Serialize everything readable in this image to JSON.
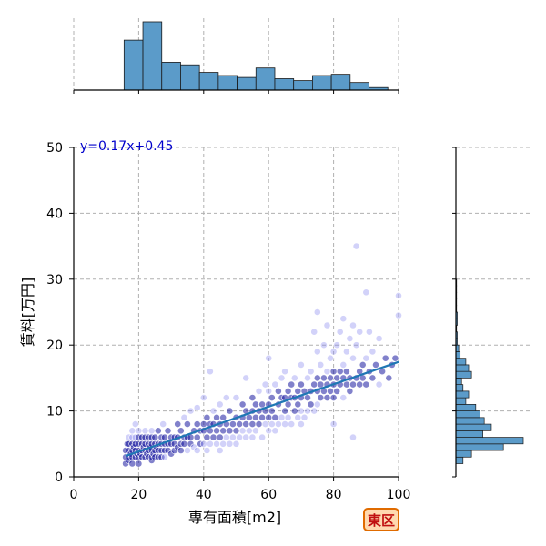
{
  "colors": {
    "scatter_fill": "#8a8af0",
    "scatter_dark": "#1a1aa0",
    "regression_line": "#1f77b4",
    "hist_fill": "#5b9bc9",
    "hist_edge": "#1a1a1a",
    "grid": "#b0b0b0",
    "equation": "#0000cc",
    "badge_border": "#e06b00",
    "badge_fill": "#ffd9b0",
    "badge_text": "#c01010"
  },
  "badge_text": "東区",
  "chart_data": {
    "type": "scatter",
    "title": "",
    "xlabel": "専有面積[m2]",
    "ylabel": "賃料[万円]",
    "xlim": [
      0,
      100
    ],
    "ylim": [
      0,
      50
    ],
    "xticks": [
      0,
      20,
      40,
      60,
      80,
      100
    ],
    "yticks": [
      0,
      10,
      20,
      30,
      40,
      50
    ],
    "grid": true,
    "regression": {
      "equation": "y=0.17x+0.45",
      "slope": 0.17,
      "intercept": 0.45,
      "x_range": [
        16,
        100
      ]
    },
    "points": [
      [
        16,
        2
      ],
      [
        16,
        3
      ],
      [
        16,
        4
      ],
      [
        16.5,
        5
      ],
      [
        17,
        2.5
      ],
      [
        17,
        3
      ],
      [
        17,
        4
      ],
      [
        17,
        5
      ],
      [
        17,
        6
      ],
      [
        17.5,
        3.5
      ],
      [
        18,
        2
      ],
      [
        18,
        3
      ],
      [
        18,
        4
      ],
      [
        18,
        5
      ],
      [
        18,
        6
      ],
      [
        18,
        7
      ],
      [
        18.5,
        4.5
      ],
      [
        19,
        3
      ],
      [
        19,
        4
      ],
      [
        19,
        5
      ],
      [
        19,
        6
      ],
      [
        19,
        8
      ],
      [
        19.5,
        3.5
      ],
      [
        20,
        2
      ],
      [
        20,
        3
      ],
      [
        20,
        4
      ],
      [
        20,
        5
      ],
      [
        20,
        6
      ],
      [
        20,
        7
      ],
      [
        20.5,
        3.5
      ],
      [
        21,
        3
      ],
      [
        21,
        4
      ],
      [
        21,
        5
      ],
      [
        21,
        6
      ],
      [
        21.5,
        4.5
      ],
      [
        22,
        3
      ],
      [
        22,
        4
      ],
      [
        22,
        5
      ],
      [
        22,
        6
      ],
      [
        22,
        7
      ],
      [
        22.5,
        3.5
      ],
      [
        23,
        3
      ],
      [
        23,
        4
      ],
      [
        23,
        5
      ],
      [
        23,
        6
      ],
      [
        23.5,
        4.5
      ],
      [
        24,
        2.5
      ],
      [
        24,
        3
      ],
      [
        24,
        4
      ],
      [
        24,
        5
      ],
      [
        24,
        6
      ],
      [
        24,
        7
      ],
      [
        24.5,
        3.5
      ],
      [
        25,
        3
      ],
      [
        25,
        4
      ],
      [
        25,
        5
      ],
      [
        25,
        6
      ],
      [
        25.5,
        4.5
      ],
      [
        26,
        3
      ],
      [
        26,
        4
      ],
      [
        26,
        5
      ],
      [
        26,
        7
      ],
      [
        27,
        3
      ],
      [
        27,
        4
      ],
      [
        27,
        5
      ],
      [
        27,
        6
      ],
      [
        27.5,
        8
      ],
      [
        28,
        3
      ],
      [
        28,
        4
      ],
      [
        28,
        5
      ],
      [
        28,
        6
      ],
      [
        29,
        4
      ],
      [
        29,
        5
      ],
      [
        29,
        7
      ],
      [
        30,
        3.5
      ],
      [
        30,
        5
      ],
      [
        30,
        6
      ],
      [
        31,
        4
      ],
      [
        31,
        5
      ],
      [
        31,
        6
      ],
      [
        32,
        4.5
      ],
      [
        32,
        6
      ],
      [
        32,
        8
      ],
      [
        33,
        4
      ],
      [
        33,
        5
      ],
      [
        33,
        7
      ],
      [
        34,
        5
      ],
      [
        34,
        6
      ],
      [
        34,
        9
      ],
      [
        35,
        4
      ],
      [
        35,
        6
      ],
      [
        35,
        8
      ],
      [
        36,
        5
      ],
      [
        36,
        6
      ],
      [
        36,
        10
      ],
      [
        37,
        4.5
      ],
      [
        37,
        7
      ],
      [
        38,
        4
      ],
      [
        38,
        6
      ],
      [
        38,
        8
      ],
      [
        38,
        10.5
      ],
      [
        39,
        5
      ],
      [
        39,
        7
      ],
      [
        40,
        5
      ],
      [
        40,
        7
      ],
      [
        40,
        8
      ],
      [
        40,
        12
      ],
      [
        41,
        4
      ],
      [
        41,
        6
      ],
      [
        41,
        9
      ],
      [
        42,
        5
      ],
      [
        42,
        7
      ],
      [
        42,
        8
      ],
      [
        42,
        16
      ],
      [
        43,
        6
      ],
      [
        43,
        8
      ],
      [
        43,
        10
      ],
      [
        44,
        5
      ],
      [
        44,
        7
      ],
      [
        44,
        9
      ],
      [
        45,
        4
      ],
      [
        45,
        6
      ],
      [
        45,
        8
      ],
      [
        45,
        11
      ],
      [
        46,
        5
      ],
      [
        46,
        7
      ],
      [
        46,
        9
      ],
      [
        47,
        6
      ],
      [
        47,
        8
      ],
      [
        47,
        12
      ],
      [
        48,
        5
      ],
      [
        48,
        7
      ],
      [
        48,
        10
      ],
      [
        49,
        6
      ],
      [
        49,
        8
      ],
      [
        50,
        5
      ],
      [
        50,
        7
      ],
      [
        50,
        9
      ],
      [
        50,
        12
      ],
      [
        51,
        6
      ],
      [
        51,
        8
      ],
      [
        52,
        7
      ],
      [
        52,
        9
      ],
      [
        52,
        11
      ],
      [
        53,
        6
      ],
      [
        53,
        8
      ],
      [
        53,
        10
      ],
      [
        53,
        15
      ],
      [
        54,
        7
      ],
      [
        54,
        9
      ],
      [
        55,
        6
      ],
      [
        55,
        8
      ],
      [
        55,
        10
      ],
      [
        55,
        12
      ],
      [
        56,
        7
      ],
      [
        56,
        9
      ],
      [
        56,
        11
      ],
      [
        57,
        8
      ],
      [
        57,
        10
      ],
      [
        57,
        13
      ],
      [
        58,
        6
      ],
      [
        58,
        9
      ],
      [
        58,
        11
      ],
      [
        59,
        8
      ],
      [
        59,
        10
      ],
      [
        59,
        14
      ],
      [
        60,
        7
      ],
      [
        60,
        9
      ],
      [
        60,
        11
      ],
      [
        60,
        13
      ],
      [
        60,
        18
      ],
      [
        61,
        8
      ],
      [
        61,
        10
      ],
      [
        61,
        12
      ],
      [
        62,
        7
      ],
      [
        62,
        9
      ],
      [
        62,
        14
      ],
      [
        63,
        8
      ],
      [
        63,
        11
      ],
      [
        63,
        13
      ],
      [
        64,
        9
      ],
      [
        64,
        12
      ],
      [
        64,
        15
      ],
      [
        65,
        8
      ],
      [
        65,
        10
      ],
      [
        65,
        12
      ],
      [
        65,
        16
      ],
      [
        66,
        9
      ],
      [
        66,
        11
      ],
      [
        66,
        13
      ],
      [
        67,
        8
      ],
      [
        67,
        12
      ],
      [
        67,
        14
      ],
      [
        68,
        10
      ],
      [
        68,
        12
      ],
      [
        68,
        15
      ],
      [
        69,
        9
      ],
      [
        69,
        11
      ],
      [
        69,
        13
      ],
      [
        70,
        8
      ],
      [
        70,
        10
      ],
      [
        70,
        12
      ],
      [
        70,
        14
      ],
      [
        70,
        17
      ],
      [
        71,
        9
      ],
      [
        71,
        13
      ],
      [
        72,
        10
      ],
      [
        72,
        12
      ],
      [
        72,
        15
      ],
      [
        73,
        11
      ],
      [
        73,
        13
      ],
      [
        73,
        16
      ],
      [
        74,
        10
      ],
      [
        74,
        14
      ],
      [
        74,
        22
      ],
      [
        75,
        11
      ],
      [
        75,
        13
      ],
      [
        75,
        15
      ],
      [
        75,
        19
      ],
      [
        75,
        25
      ],
      [
        76,
        12
      ],
      [
        76,
        14
      ],
      [
        76,
        17
      ],
      [
        77,
        13
      ],
      [
        77,
        15
      ],
      [
        77,
        20
      ],
      [
        78,
        12
      ],
      [
        78,
        14
      ],
      [
        78,
        16
      ],
      [
        78,
        23
      ],
      [
        79,
        13
      ],
      [
        79,
        15
      ],
      [
        79,
        18
      ],
      [
        80,
        8
      ],
      [
        80,
        12
      ],
      [
        80,
        14
      ],
      [
        80,
        16
      ],
      [
        80,
        19
      ],
      [
        81,
        13
      ],
      [
        81,
        15
      ],
      [
        81,
        20
      ],
      [
        82,
        14
      ],
      [
        82,
        16
      ],
      [
        82,
        22
      ],
      [
        83,
        12
      ],
      [
        83,
        15
      ],
      [
        83,
        17
      ],
      [
        83,
        24
      ],
      [
        84,
        14
      ],
      [
        84,
        16
      ],
      [
        84,
        19
      ],
      [
        85,
        13
      ],
      [
        85,
        15
      ],
      [
        85,
        21
      ],
      [
        86,
        6
      ],
      [
        86,
        14
      ],
      [
        86,
        18
      ],
      [
        86,
        23
      ],
      [
        87,
        35
      ],
      [
        87,
        15
      ],
      [
        87,
        20
      ],
      [
        88,
        14
      ],
      [
        88,
        16
      ],
      [
        88,
        22
      ],
      [
        89,
        15
      ],
      [
        89,
        17
      ],
      [
        90,
        14
      ],
      [
        90,
        18
      ],
      [
        90,
        28
      ],
      [
        91,
        16
      ],
      [
        91,
        22
      ],
      [
        92,
        15
      ],
      [
        92,
        19
      ],
      [
        93,
        17
      ],
      [
        94,
        14
      ],
      [
        94,
        21
      ],
      [
        95,
        16
      ],
      [
        96,
        18
      ],
      [
        97,
        15
      ],
      [
        98,
        17
      ],
      [
        99,
        18
      ],
      [
        100,
        24.5
      ],
      [
        100,
        27.5
      ]
    ],
    "x_histogram": {
      "bin_edges": [
        15.5,
        21.3,
        27.1,
        32.9,
        38.7,
        44.5,
        50.3,
        56.1,
        61.9,
        67.7,
        73.5,
        79.3,
        85.1,
        90.9,
        96.7
      ],
      "counts": [
        79,
        108,
        44,
        40,
        28,
        23,
        20,
        35,
        18,
        15,
        23,
        25,
        12,
        4
      ]
    },
    "y_histogram": {
      "bin_edges": [
        2.0,
        3.0,
        4.0,
        5.0,
        6.0,
        7.0,
        8.0,
        9.0,
        10.0,
        11.0,
        12.0,
        13.0,
        14.0,
        15.0,
        16.0,
        17.0,
        18.0,
        19.0,
        20.0,
        21.0,
        22.0,
        23.0,
        24.0,
        25.0,
        26.0,
        27.0,
        28.0,
        29.0,
        30.0
      ],
      "counts": [
        10,
        22,
        67,
        95,
        38,
        50,
        40,
        34,
        28,
        14,
        18,
        10,
        8,
        22,
        18,
        14,
        6,
        4,
        2,
        2,
        1,
        2,
        2,
        1,
        1,
        1,
        1,
        1
      ]
    }
  }
}
